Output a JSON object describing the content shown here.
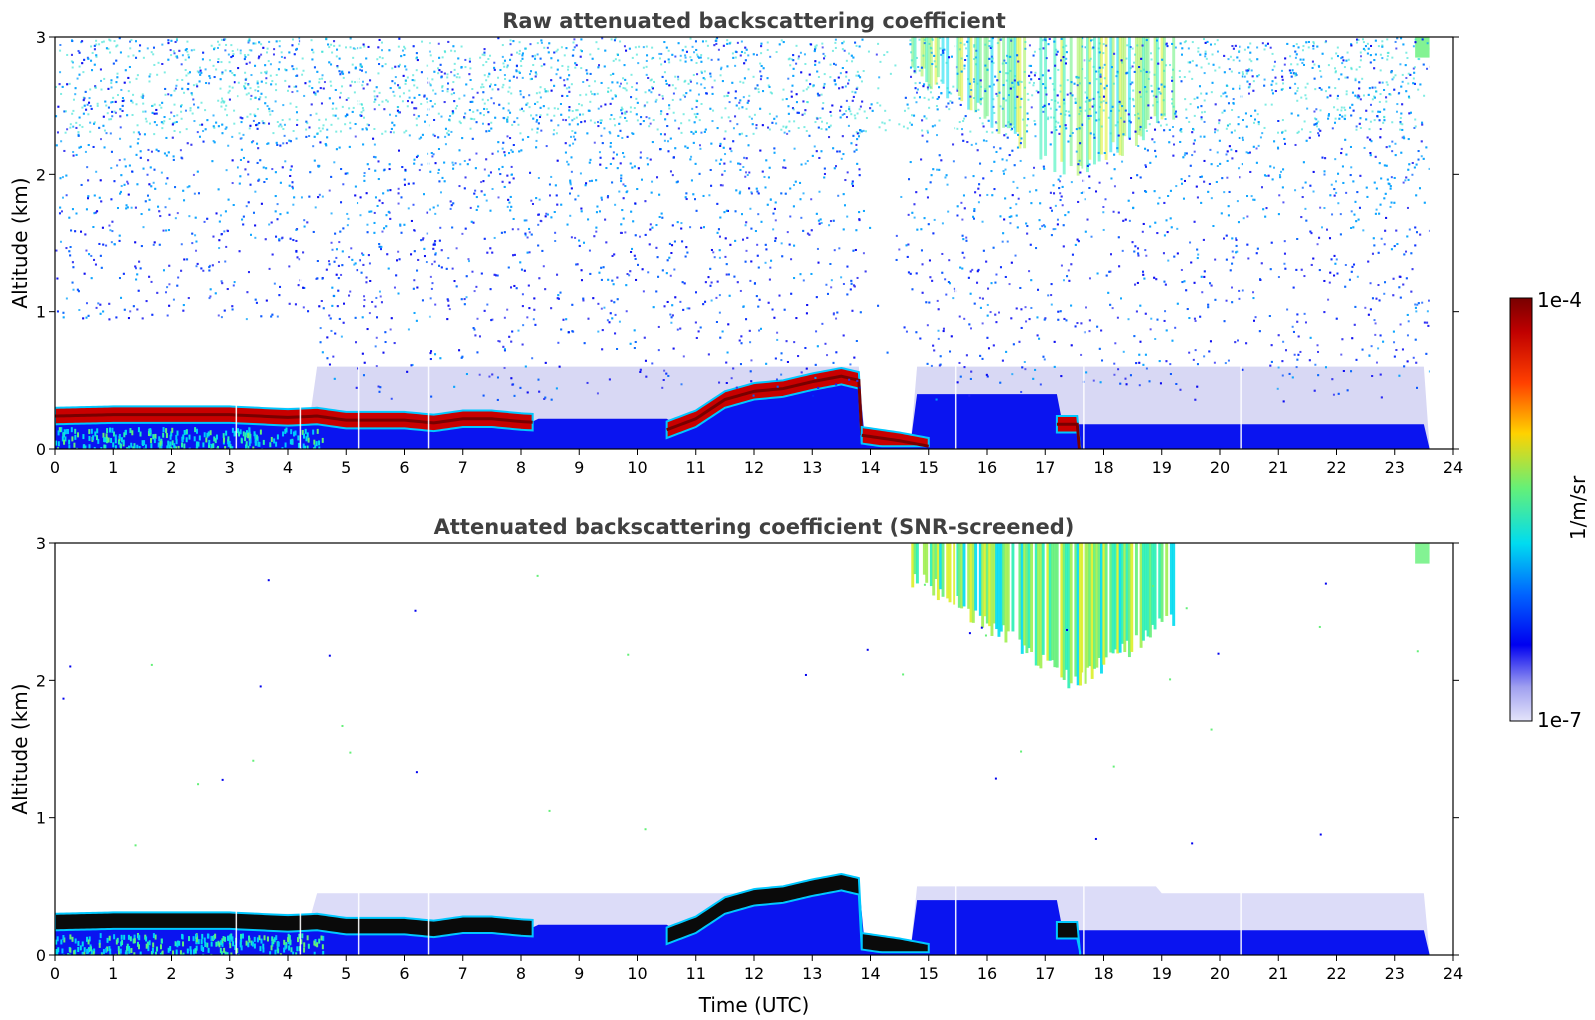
{
  "chart_data": [
    {
      "type": "heatmap",
      "title": "Raw attenuated backscattering coefficient",
      "xlabel": "",
      "ylabel": "Altitude (km)",
      "xlim": [
        0,
        24
      ],
      "ylim": [
        0,
        3
      ],
      "x_ticks": [
        "0",
        "1",
        "2",
        "3",
        "4",
        "5",
        "6",
        "7",
        "8",
        "9",
        "10",
        "11",
        "12",
        "13",
        "14",
        "15",
        "16",
        "17",
        "18",
        "19",
        "20",
        "21",
        "22",
        "23",
        "24"
      ],
      "y_ticks": [
        "0",
        "1",
        "2",
        "3"
      ],
      "data_end_hour": 23.6,
      "cloud_top_km": [
        {
          "t": 0.0,
          "h": 0.3
        },
        {
          "t": 1.0,
          "h": 0.31
        },
        {
          "t": 2.0,
          "h": 0.31
        },
        {
          "t": 3.0,
          "h": 0.31
        },
        {
          "t": 4.0,
          "h": 0.29
        },
        {
          "t": 4.5,
          "h": 0.3
        },
        {
          "t": 5.0,
          "h": 0.27
        },
        {
          "t": 5.5,
          "h": 0.27
        },
        {
          "t": 6.0,
          "h": 0.27
        },
        {
          "t": 6.5,
          "h": 0.25
        },
        {
          "t": 7.0,
          "h": 0.28
        },
        {
          "t": 7.5,
          "h": 0.28
        },
        {
          "t": 8.0,
          "h": 0.26
        },
        {
          "t": 10.5,
          "h": 0.2
        },
        {
          "t": 11.0,
          "h": 0.28
        },
        {
          "t": 11.5,
          "h": 0.42
        },
        {
          "t": 12.0,
          "h": 0.48
        },
        {
          "t": 12.5,
          "h": 0.5
        },
        {
          "t": 13.0,
          "h": 0.55
        },
        {
          "t": 13.5,
          "h": 0.59
        },
        {
          "t": 13.8,
          "h": 0.56
        },
        {
          "t": 13.85,
          "h": 0.16
        },
        {
          "t": 14.5,
          "h": 0.12
        },
        {
          "t": 15.0,
          "h": 0.08
        },
        {
          "t": 17.2,
          "h": 0.24
        },
        {
          "t": 17.6,
          "h": 0.24
        }
      ],
      "upper_cloud": {
        "start_hour": 14.7,
        "end_hour": 19.2,
        "base_km": 2.1,
        "top_km": 3.0
      }
    },
    {
      "type": "heatmap",
      "title": "Attenuated backscattering coefficient (SNR-screened)",
      "xlabel": "Time (UTC)",
      "ylabel": "Altitude (km)",
      "xlim": [
        0,
        24
      ],
      "ylim": [
        0,
        3
      ],
      "x_ticks": [
        "0",
        "1",
        "2",
        "3",
        "4",
        "5",
        "6",
        "7",
        "8",
        "9",
        "10",
        "11",
        "12",
        "13",
        "14",
        "15",
        "16",
        "17",
        "18",
        "19",
        "20",
        "21",
        "22",
        "23",
        "24"
      ],
      "y_ticks": [
        "0",
        "1",
        "2",
        "3"
      ],
      "data_end_hour": 23.6
    }
  ],
  "colorbar": {
    "label": "1/m/sr",
    "max_label": "1e-4",
    "min_label": "1e-7",
    "colors": [
      "#e4e4fa",
      "#c8c8f5",
      "#a0a0f0",
      "#6464f0",
      "#3232f0",
      "#0000f0",
      "#0028ff",
      "#0064ff",
      "#00a0ff",
      "#00dcf0",
      "#28f0b4",
      "#64f078",
      "#a0f050",
      "#dcf028",
      "#ffd200",
      "#ff8c00",
      "#ff4000",
      "#e00000",
      "#a00000",
      "#780000"
    ]
  }
}
